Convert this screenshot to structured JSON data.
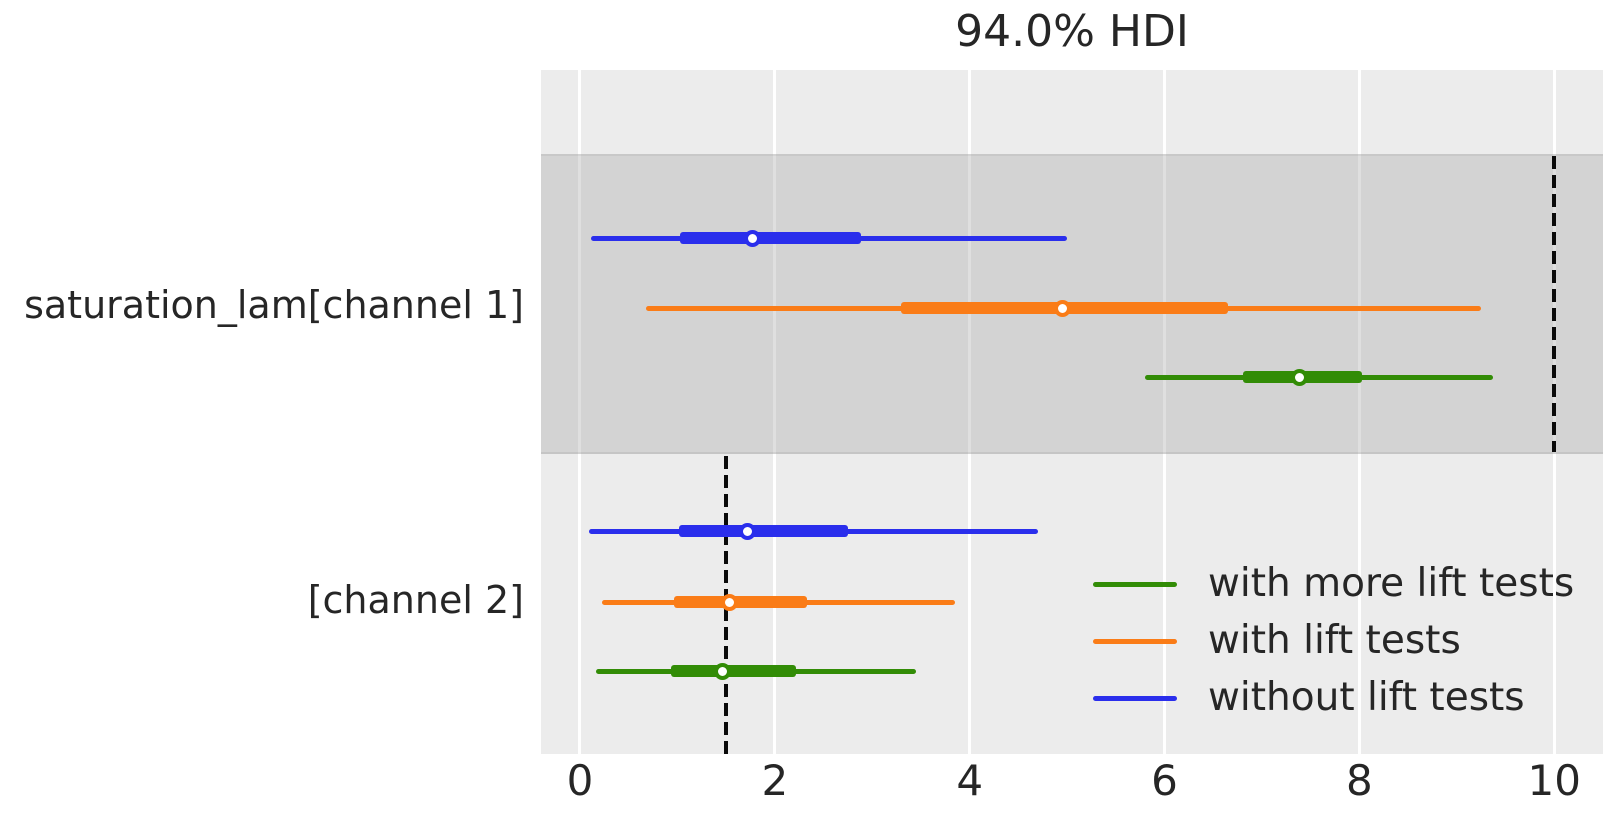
{
  "title": "94.0% HDI",
  "colors": {
    "blue": "#2a2eec",
    "orange": "#fa7c17",
    "green": "#328c06",
    "plot_background": "#ececec",
    "band": "#d4d4d4",
    "gridline": "#ffffff",
    "text": "#262626",
    "ref_line": "#0a0a0a"
  },
  "legend": [
    {
      "label": "with more lift tests",
      "color_key": "green"
    },
    {
      "label": "with lift tests",
      "color_key": "orange"
    },
    {
      "label": "without lift tests",
      "color_key": "blue"
    }
  ],
  "chart_data": {
    "type": "forest",
    "title": "94.0% HDI",
    "hdi_label": "94.0% HDI",
    "xlim": [
      -0.4,
      10.5
    ],
    "x_ticks": [
      0,
      2,
      4,
      6,
      8,
      10
    ],
    "grid": true,
    "legend_position": "lower right",
    "rows": [
      {
        "label": "saturation_lam[channel 1]",
        "shaded": true,
        "ref_line_x": 10,
        "series": [
          {
            "name": "without lift tests",
            "color_key": "blue",
            "hdi": [
              0.11,
              5.0
            ],
            "quartile": [
              1.03,
              2.88
            ],
            "median": 1.77
          },
          {
            "name": "with lift tests",
            "color_key": "orange",
            "hdi": [
              0.68,
              9.25
            ],
            "quartile": [
              3.3,
              6.65
            ],
            "median": 4.95
          },
          {
            "name": "with more lift tests",
            "color_key": "green",
            "hdi": [
              5.8,
              9.37
            ],
            "quartile": [
              6.8,
              8.03
            ],
            "median": 7.38
          }
        ]
      },
      {
        "label": "[channel 2]",
        "shaded": false,
        "ref_line_x": 1.5,
        "series": [
          {
            "name": "without lift tests",
            "color_key": "blue",
            "hdi": [
              0.09,
              4.7
            ],
            "quartile": [
              1.02,
              2.75
            ],
            "median": 1.72
          },
          {
            "name": "with lift tests",
            "color_key": "orange",
            "hdi": [
              0.23,
              3.85
            ],
            "quartile": [
              0.96,
              2.33
            ],
            "median": 1.53
          },
          {
            "name": "with more lift tests",
            "color_key": "green",
            "hdi": [
              0.16,
              3.45
            ],
            "quartile": [
              0.93,
              2.22
            ],
            "median": 1.46
          }
        ]
      }
    ]
  }
}
